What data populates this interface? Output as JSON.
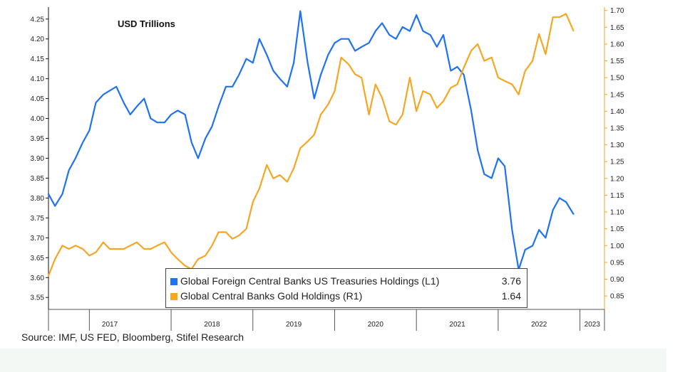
{
  "colors": {
    "usd_series": "#1f72f2",
    "gold_series": "#f5a623",
    "left_axis": "#111111",
    "right_axis": "#f5a623"
  },
  "chart_data": {
    "type": "line",
    "title": "USD Trillions",
    "source": "Source: IMF, US FED, Bloomberg, Stifel Research",
    "x_labels": [
      "2017",
      "2018",
      "2019",
      "2020",
      "2021",
      "2022",
      "2023"
    ],
    "x_range": [
      2016.5,
      2023.3
    ],
    "y_left": {
      "range": [
        3.52,
        4.28
      ],
      "ticks": [
        "3.55",
        "3.60",
        "3.65",
        "3.70",
        "3.75",
        "3.80",
        "3.85",
        "3.90",
        "3.95",
        "4.00",
        "4.05",
        "4.10",
        "4.15",
        "4.20",
        "4.25"
      ]
    },
    "y_right": {
      "range": [
        0.81,
        1.71
      ],
      "ticks": [
        "0.85",
        "0.90",
        "0.95",
        "1.00",
        "1.05",
        "1.10",
        "1.15",
        "1.20",
        "1.25",
        "1.30",
        "1.35",
        "1.40",
        "1.45",
        "1.50",
        "1.55",
        "1.60",
        "1.65",
        "1.70"
      ]
    },
    "grid": false,
    "legend_position": "bottom-center",
    "series": [
      {
        "name": "Global Foreign Central Banks US Treasuries Holdings (L1)",
        "last_value": "3.76",
        "axis": "left",
        "points": [
          [
            2016.5,
            3.81
          ],
          [
            2016.58,
            3.78
          ],
          [
            2016.67,
            3.81
          ],
          [
            2016.75,
            3.87
          ],
          [
            2016.83,
            3.9
          ],
          [
            2016.92,
            3.94
          ],
          [
            2017.0,
            3.97
          ],
          [
            2017.08,
            4.04
          ],
          [
            2017.17,
            4.06
          ],
          [
            2017.25,
            4.07
          ],
          [
            2017.33,
            4.08
          ],
          [
            2017.42,
            4.04
          ],
          [
            2017.5,
            4.01
          ],
          [
            2017.58,
            4.03
          ],
          [
            2017.67,
            4.05
          ],
          [
            2017.75,
            4.0
          ],
          [
            2017.83,
            3.99
          ],
          [
            2017.92,
            3.99
          ],
          [
            2018.0,
            4.01
          ],
          [
            2018.08,
            4.02
          ],
          [
            2018.17,
            4.01
          ],
          [
            2018.25,
            3.94
          ],
          [
            2018.33,
            3.9
          ],
          [
            2018.42,
            3.95
          ],
          [
            2018.5,
            3.98
          ],
          [
            2018.58,
            4.03
          ],
          [
            2018.67,
            4.08
          ],
          [
            2018.75,
            4.08
          ],
          [
            2018.83,
            4.11
          ],
          [
            2018.92,
            4.15
          ],
          [
            2019.0,
            4.14
          ],
          [
            2019.08,
            4.2
          ],
          [
            2019.17,
            4.16
          ],
          [
            2019.25,
            4.12
          ],
          [
            2019.33,
            4.1
          ],
          [
            2019.42,
            4.08
          ],
          [
            2019.5,
            4.14
          ],
          [
            2019.58,
            4.27
          ],
          [
            2019.67,
            4.14
          ],
          [
            2019.75,
            4.05
          ],
          [
            2019.83,
            4.11
          ],
          [
            2019.92,
            4.16
          ],
          [
            2020.0,
            4.19
          ],
          [
            2020.08,
            4.2
          ],
          [
            2020.17,
            4.2
          ],
          [
            2020.25,
            4.17
          ],
          [
            2020.33,
            4.18
          ],
          [
            2020.42,
            4.19
          ],
          [
            2020.5,
            4.22
          ],
          [
            2020.58,
            4.24
          ],
          [
            2020.67,
            4.21
          ],
          [
            2020.75,
            4.2
          ],
          [
            2020.83,
            4.23
          ],
          [
            2020.92,
            4.22
          ],
          [
            2021.0,
            4.26
          ],
          [
            2021.08,
            4.22
          ],
          [
            2021.17,
            4.21
          ],
          [
            2021.25,
            4.18
          ],
          [
            2021.33,
            4.21
          ],
          [
            2021.42,
            4.12
          ],
          [
            2021.5,
            4.13
          ],
          [
            2021.58,
            4.11
          ],
          [
            2021.67,
            4.02
          ],
          [
            2021.75,
            3.92
          ],
          [
            2021.83,
            3.86
          ],
          [
            2021.92,
            3.85
          ],
          [
            2022.0,
            3.9
          ],
          [
            2022.08,
            3.88
          ],
          [
            2022.17,
            3.72
          ],
          [
            2022.25,
            3.62
          ],
          [
            2022.33,
            3.67
          ],
          [
            2022.42,
            3.68
          ],
          [
            2022.5,
            3.72
          ],
          [
            2022.58,
            3.7
          ],
          [
            2022.67,
            3.77
          ],
          [
            2022.75,
            3.8
          ],
          [
            2022.83,
            3.79
          ],
          [
            2022.92,
            3.76
          ]
        ]
      },
      {
        "name": "Global Central Banks Gold Holdings (R1)",
        "last_value": "1.64",
        "axis": "right",
        "points": [
          [
            2016.5,
            0.91
          ],
          [
            2016.58,
            0.96
          ],
          [
            2016.67,
            1.0
          ],
          [
            2016.75,
            0.99
          ],
          [
            2016.83,
            1.0
          ],
          [
            2016.92,
            0.99
          ],
          [
            2017.0,
            0.97
          ],
          [
            2017.08,
            0.98
          ],
          [
            2017.17,
            1.01
          ],
          [
            2017.25,
            0.99
          ],
          [
            2017.33,
            0.99
          ],
          [
            2017.42,
            0.99
          ],
          [
            2017.5,
            1.0
          ],
          [
            2017.58,
            1.01
          ],
          [
            2017.67,
            0.99
          ],
          [
            2017.75,
            0.99
          ],
          [
            2017.83,
            1.0
          ],
          [
            2017.92,
            1.01
          ],
          [
            2018.0,
            0.98
          ],
          [
            2018.08,
            0.96
          ],
          [
            2018.17,
            0.94
          ],
          [
            2018.25,
            0.93
          ],
          [
            2018.33,
            0.96
          ],
          [
            2018.42,
            0.97
          ],
          [
            2018.5,
            1.0
          ],
          [
            2018.58,
            1.04
          ],
          [
            2018.67,
            1.04
          ],
          [
            2018.75,
            1.02
          ],
          [
            2018.83,
            1.03
          ],
          [
            2018.92,
            1.05
          ],
          [
            2019.0,
            1.13
          ],
          [
            2019.08,
            1.17
          ],
          [
            2019.17,
            1.24
          ],
          [
            2019.25,
            1.2
          ],
          [
            2019.33,
            1.21
          ],
          [
            2019.42,
            1.19
          ],
          [
            2019.5,
            1.23
          ],
          [
            2019.58,
            1.29
          ],
          [
            2019.67,
            1.31
          ],
          [
            2019.75,
            1.33
          ],
          [
            2019.83,
            1.39
          ],
          [
            2019.92,
            1.42
          ],
          [
            2020.0,
            1.46
          ],
          [
            2020.08,
            1.56
          ],
          [
            2020.17,
            1.54
          ],
          [
            2020.25,
            1.51
          ],
          [
            2020.33,
            1.5
          ],
          [
            2020.42,
            1.39
          ],
          [
            2020.5,
            1.48
          ],
          [
            2020.58,
            1.44
          ],
          [
            2020.67,
            1.37
          ],
          [
            2020.75,
            1.36
          ],
          [
            2020.83,
            1.39
          ],
          [
            2020.92,
            1.5
          ],
          [
            2021.0,
            1.4
          ],
          [
            2021.08,
            1.46
          ],
          [
            2021.17,
            1.45
          ],
          [
            2021.25,
            1.41
          ],
          [
            2021.33,
            1.43
          ],
          [
            2021.42,
            1.47
          ],
          [
            2021.5,
            1.48
          ],
          [
            2021.58,
            1.53
          ],
          [
            2021.67,
            1.58
          ],
          [
            2021.75,
            1.6
          ],
          [
            2021.83,
            1.55
          ],
          [
            2021.92,
            1.56
          ],
          [
            2022.0,
            1.5
          ],
          [
            2022.08,
            1.49
          ],
          [
            2022.17,
            1.48
          ],
          [
            2022.25,
            1.45
          ],
          [
            2022.33,
            1.52
          ],
          [
            2022.42,
            1.55
          ],
          [
            2022.5,
            1.63
          ],
          [
            2022.58,
            1.57
          ],
          [
            2022.67,
            1.68
          ],
          [
            2022.75,
            1.68
          ],
          [
            2022.83,
            1.69
          ],
          [
            2022.92,
            1.64
          ]
        ]
      }
    ]
  }
}
